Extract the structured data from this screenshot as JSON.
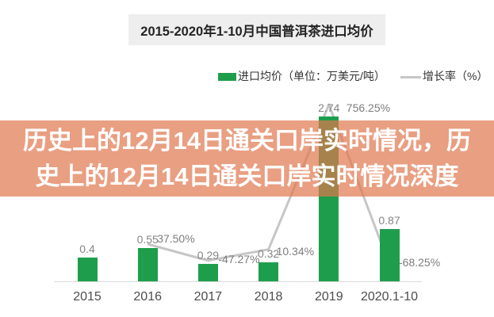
{
  "chart_title": "2015-2020年1-10月中国普洱茶进口均价",
  "legend": {
    "bar_label": "进口均价（单位：万美元/吨）",
    "line_label": "增长率（%）"
  },
  "overlay_banner": {
    "line1": "历史上的12月14日通关口岸实时情况，历",
    "line2": "史上的12月14日通关口岸实时情况深度",
    "text_color": "#ffffff",
    "background_color": "#DF764D"
  },
  "colors": {
    "bar_green": "#1E9E4C",
    "line_gray": "#C6C6C6",
    "title_box_gray": "#EEEEEE"
  },
  "chart_data": {
    "type": "bar",
    "title": "2015-2020年1-10月中国普洱茶进口均价",
    "categories": [
      "2015",
      "2016",
      "2017",
      "2018",
      "2019",
      "2020.1-10"
    ],
    "series": [
      {
        "name": "进口均价（单位：万美元/吨）",
        "type": "bar",
        "color": "#1E9E4C",
        "values": [
          0.4,
          0.55,
          0.29,
          0.32,
          2.74,
          0.87
        ],
        "labels": [
          "0.4",
          "0.55",
          "0.29",
          "0.32",
          "2.74",
          "0.87"
        ]
      },
      {
        "name": "增长率（%）",
        "type": "line",
        "color": "#C6C6C6",
        "values": [
          null,
          37.5,
          -47.27,
          10.34,
          756.25,
          -68.25
        ],
        "labels": [
          null,
          "37.50%",
          "-47.27%",
          "10.34%",
          "756.25%",
          "-68.25%"
        ]
      }
    ],
    "xlabel": "",
    "ylabel": "",
    "grid": false,
    "legend_position": "top"
  }
}
